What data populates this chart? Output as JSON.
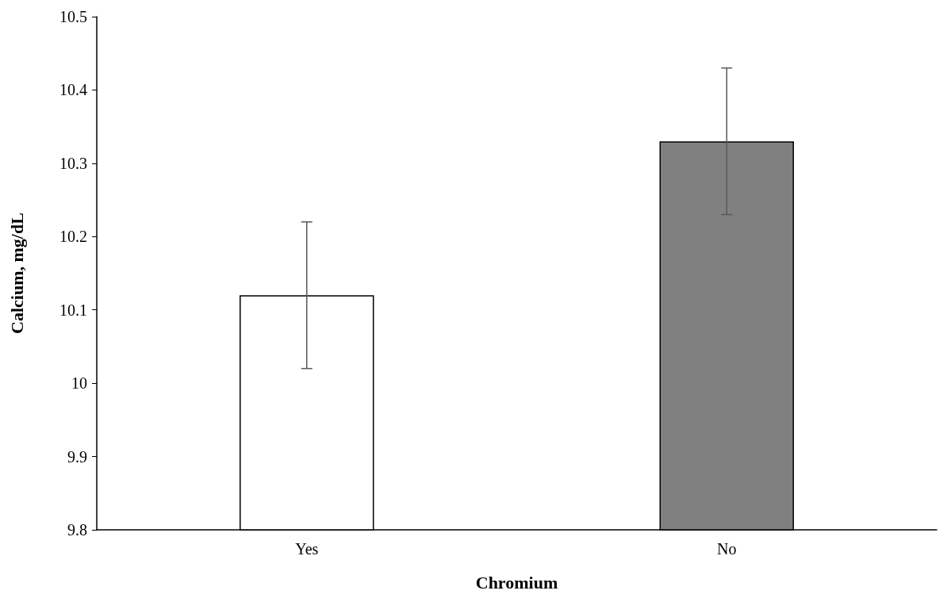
{
  "chart_data": {
    "type": "bar",
    "xlabel": "Chromium",
    "ylabel": "Calcium, mg/dL",
    "categories": [
      "Yes",
      "No"
    ],
    "values": [
      10.12,
      10.33
    ],
    "colors": [
      "#ffffff",
      "#808080"
    ],
    "errors": [
      0.1,
      0.1
    ],
    "ylim": [
      9.8,
      10.5
    ],
    "yticks": [
      9.8,
      9.9,
      {
        "value": 10,
        "label": "10"
      },
      10.1,
      10.2,
      10.3,
      10.4,
      10.5
    ],
    "grid": false
  }
}
